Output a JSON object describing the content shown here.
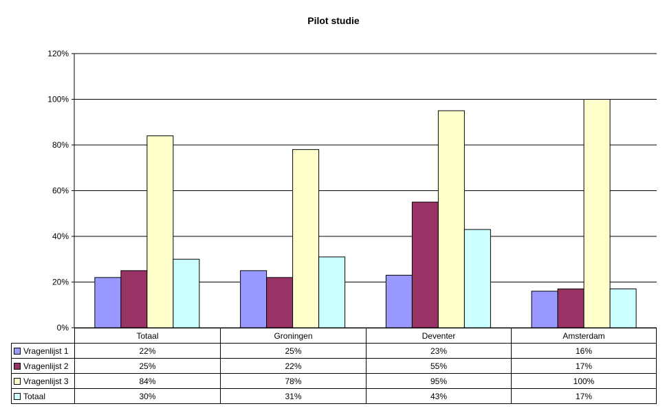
{
  "chart_data": {
    "type": "bar",
    "title": "Pilot studie",
    "categories": [
      "Totaal",
      "Groningen",
      "Deventer",
      "Amsterdam"
    ],
    "series": [
      {
        "name": "Vragenlijst 1",
        "color": "#9999ff",
        "values": [
          22,
          25,
          23,
          16
        ],
        "labels": [
          "22%",
          "25%",
          "23%",
          "16%"
        ]
      },
      {
        "name": "Vragenlijst 2",
        "color": "#993366",
        "values": [
          25,
          22,
          55,
          17
        ],
        "labels": [
          "25%",
          "22%",
          "55%",
          "17%"
        ]
      },
      {
        "name": "Vragenlijst 3",
        "color": "#ffffcc",
        "values": [
          84,
          78,
          95,
          100
        ],
        "labels": [
          "84%",
          "78%",
          "95%",
          "100%"
        ]
      },
      {
        "name": "Totaal",
        "color": "#ccffff",
        "values": [
          30,
          31,
          43,
          17
        ],
        "labels": [
          "30%",
          "31%",
          "43%",
          "17%"
        ]
      }
    ],
    "ylim": [
      0,
      120
    ],
    "yticks": [
      "0%",
      "20%",
      "40%",
      "60%",
      "80%",
      "100%",
      "120%"
    ],
    "grid": true,
    "legend": "data table below chart"
  }
}
